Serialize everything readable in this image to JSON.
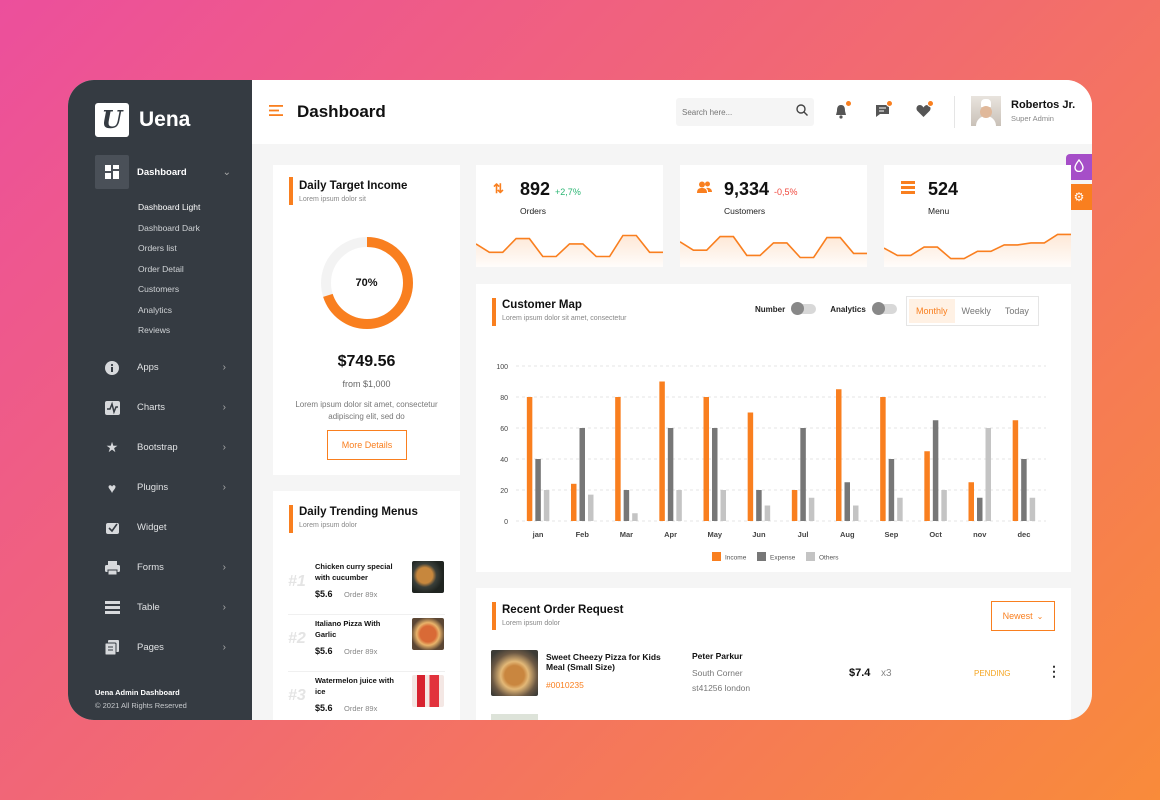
{
  "brand": {
    "logo_letter": "U",
    "name": "Uena"
  },
  "colors": {
    "accent": "#f97f1f",
    "sidebar": "#353b42",
    "income": "#f97f1f",
    "expense": "#777777",
    "others": "#c4c4c4",
    "up": "#2bb673",
    "down": "#f0493e",
    "theme_button": "#a64ec8"
  },
  "sidebar": {
    "active": {
      "label": "Dashboard",
      "icon": "grid-icon"
    },
    "submenu": [
      "Dashboard Light",
      "Dashboard Dark",
      "Orders list",
      "Order Detail",
      "Customers",
      "Analytics",
      "Reviews"
    ],
    "items": [
      {
        "label": "Apps",
        "icon": "info-icon",
        "chevron": true
      },
      {
        "label": "Charts",
        "icon": "chart-icon",
        "chevron": true
      },
      {
        "label": "Bootstrap",
        "icon": "star-icon",
        "chevron": true
      },
      {
        "label": "Plugins",
        "icon": "heart-icon",
        "chevron": true
      },
      {
        "label": "Widget",
        "icon": "widget-icon",
        "chevron": false
      },
      {
        "label": "Forms",
        "icon": "printer-icon",
        "chevron": true
      },
      {
        "label": "Table",
        "icon": "table-icon",
        "chevron": true
      },
      {
        "label": "Pages",
        "icon": "pages-icon",
        "chevron": true
      }
    ],
    "footer": {
      "title": "Uena Admin Dashboard",
      "copyright": "© 2021 All Rights Reserved"
    }
  },
  "header": {
    "title": "Dashboard",
    "search_placeholder": "Search here...",
    "user": {
      "name": "Robertos Jr.",
      "role": "Super Admin"
    }
  },
  "target_income": {
    "title": "Daily Target Income",
    "subtitle": "Lorem ipsum dolor sit",
    "percent_label": "70%",
    "percent": 0.7,
    "amount": "$749.56",
    "from": "from $1,000",
    "description": "Lorem ipsum dolor sit amet, consectetur adipiscing elit, sed do",
    "button": "More Details"
  },
  "stats": [
    {
      "value": "892",
      "delta": "+2,7%",
      "delta_dir": "up",
      "label": "Orders",
      "icon": "arrows-icon",
      "spark": [
        22,
        14,
        14,
        27,
        27,
        10,
        10,
        22,
        22,
        10,
        10,
        30,
        30,
        14,
        14
      ]
    },
    {
      "value": "9,334",
      "delta": "-0,5%",
      "delta_dir": "down",
      "label": "Customers",
      "icon": "users-icon",
      "spark": [
        24,
        16,
        16,
        29,
        29,
        11,
        11,
        23,
        23,
        9,
        9,
        28,
        28,
        13,
        13
      ]
    },
    {
      "value": "524",
      "delta": "",
      "delta_dir": "",
      "label": "Menu",
      "icon": "menu-list-icon",
      "spark": [
        18,
        11,
        11,
        19,
        19,
        8,
        8,
        15,
        15,
        21,
        21,
        23,
        23,
        31,
        31
      ]
    }
  ],
  "customer_map": {
    "title": "Customer Map",
    "subtitle": "Lorem ipsum dolor sit amet, consectetur",
    "toggles": [
      "Number",
      "Analytics"
    ],
    "tabs": [
      "Monthly",
      "Weekly",
      "Today"
    ],
    "active_tab": "Monthly"
  },
  "chart_data": {
    "type": "bar",
    "categories": [
      "jan",
      "Feb",
      "Mar",
      "Apr",
      "May",
      "Jun",
      "Jul",
      "Aug",
      "Sep",
      "Oct",
      "nov",
      "dec"
    ],
    "series": [
      {
        "name": "Income",
        "values": [
          80,
          24,
          80,
          90,
          80,
          70,
          20,
          85,
          80,
          45,
          25,
          65
        ]
      },
      {
        "name": "Expense",
        "values": [
          40,
          60,
          20,
          60,
          60,
          20,
          60,
          25,
          40,
          65,
          15,
          40
        ]
      },
      {
        "name": "Others",
        "values": [
          20,
          17,
          5,
          20,
          20,
          10,
          15,
          10,
          15,
          20,
          60,
          15
        ]
      }
    ],
    "ylim": [
      0,
      100
    ],
    "yticks": [
      0,
      20,
      40,
      60,
      80,
      100
    ],
    "grid": true,
    "legend": "bottom"
  },
  "trending": {
    "title": "Daily Trending Menus",
    "subtitle": "Lorem ipsum dolor",
    "items": [
      {
        "rank": "#1",
        "name": "Chicken curry special with cucumber",
        "price": "$5.6",
        "order": "Order 89x"
      },
      {
        "rank": "#2",
        "name": "Italiano Pizza With Garlic",
        "price": "$5.6",
        "order": "Order 89x"
      },
      {
        "rank": "#3",
        "name": "Watermelon juice with ice",
        "price": "$5.6",
        "order": "Order 89x"
      }
    ]
  },
  "recent_orders": {
    "title": "Recent Order Request",
    "subtitle": "Lorem ipsum dolor",
    "filter": "Newest",
    "rows": [
      {
        "item": "Sweet Cheezy Pizza for Kids Meal (Small Size)",
        "id": "#0010235",
        "customer": "Peter Parkur",
        "address1": "South Corner",
        "address2": "st41256 london",
        "price": "$7.4",
        "qty": "x3",
        "status": "PENDING"
      }
    ]
  }
}
